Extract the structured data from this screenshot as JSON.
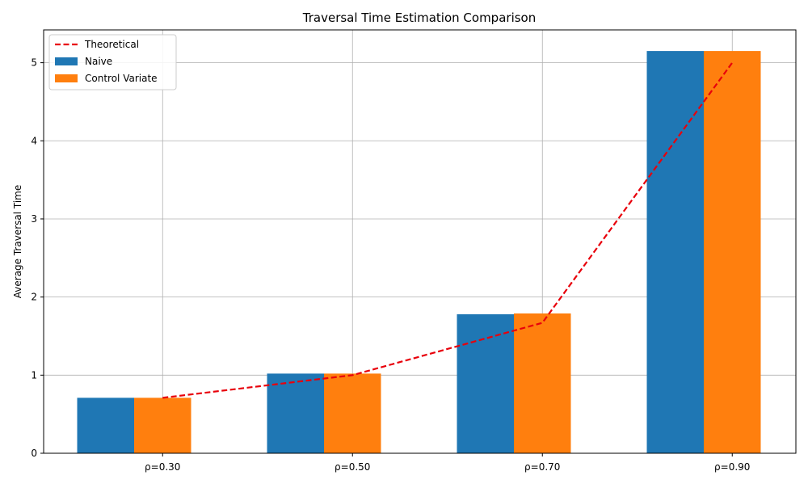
{
  "chart_data": {
    "type": "bar",
    "title": "Traversal Time Estimation Comparison",
    "xlabel": "",
    "ylabel": "Average Traversal Time",
    "categories": [
      "ρ=0.30",
      "ρ=0.50",
      "ρ=0.70",
      "ρ=0.90"
    ],
    "ylim": [
      0,
      5.42
    ],
    "yticks": [
      0,
      1,
      2,
      3,
      4,
      5
    ],
    "ytick_labels": [
      "0",
      "1",
      "2",
      "3",
      "4",
      "5"
    ],
    "grid": true,
    "legend_position": "upper-left",
    "series": [
      {
        "name": "Naive",
        "kind": "bar",
        "color": "#1f77b4",
        "values": [
          0.71,
          1.02,
          1.78,
          5.15
        ]
      },
      {
        "name": "Control Variate",
        "kind": "bar",
        "color": "#ff7f0e",
        "values": [
          0.71,
          1.02,
          1.79,
          5.15
        ]
      },
      {
        "name": "Theoretical",
        "kind": "line",
        "style": "dashed",
        "color": "#e8000b",
        "values": [
          0.71,
          1.0,
          1.67,
          5.0
        ]
      }
    ]
  }
}
